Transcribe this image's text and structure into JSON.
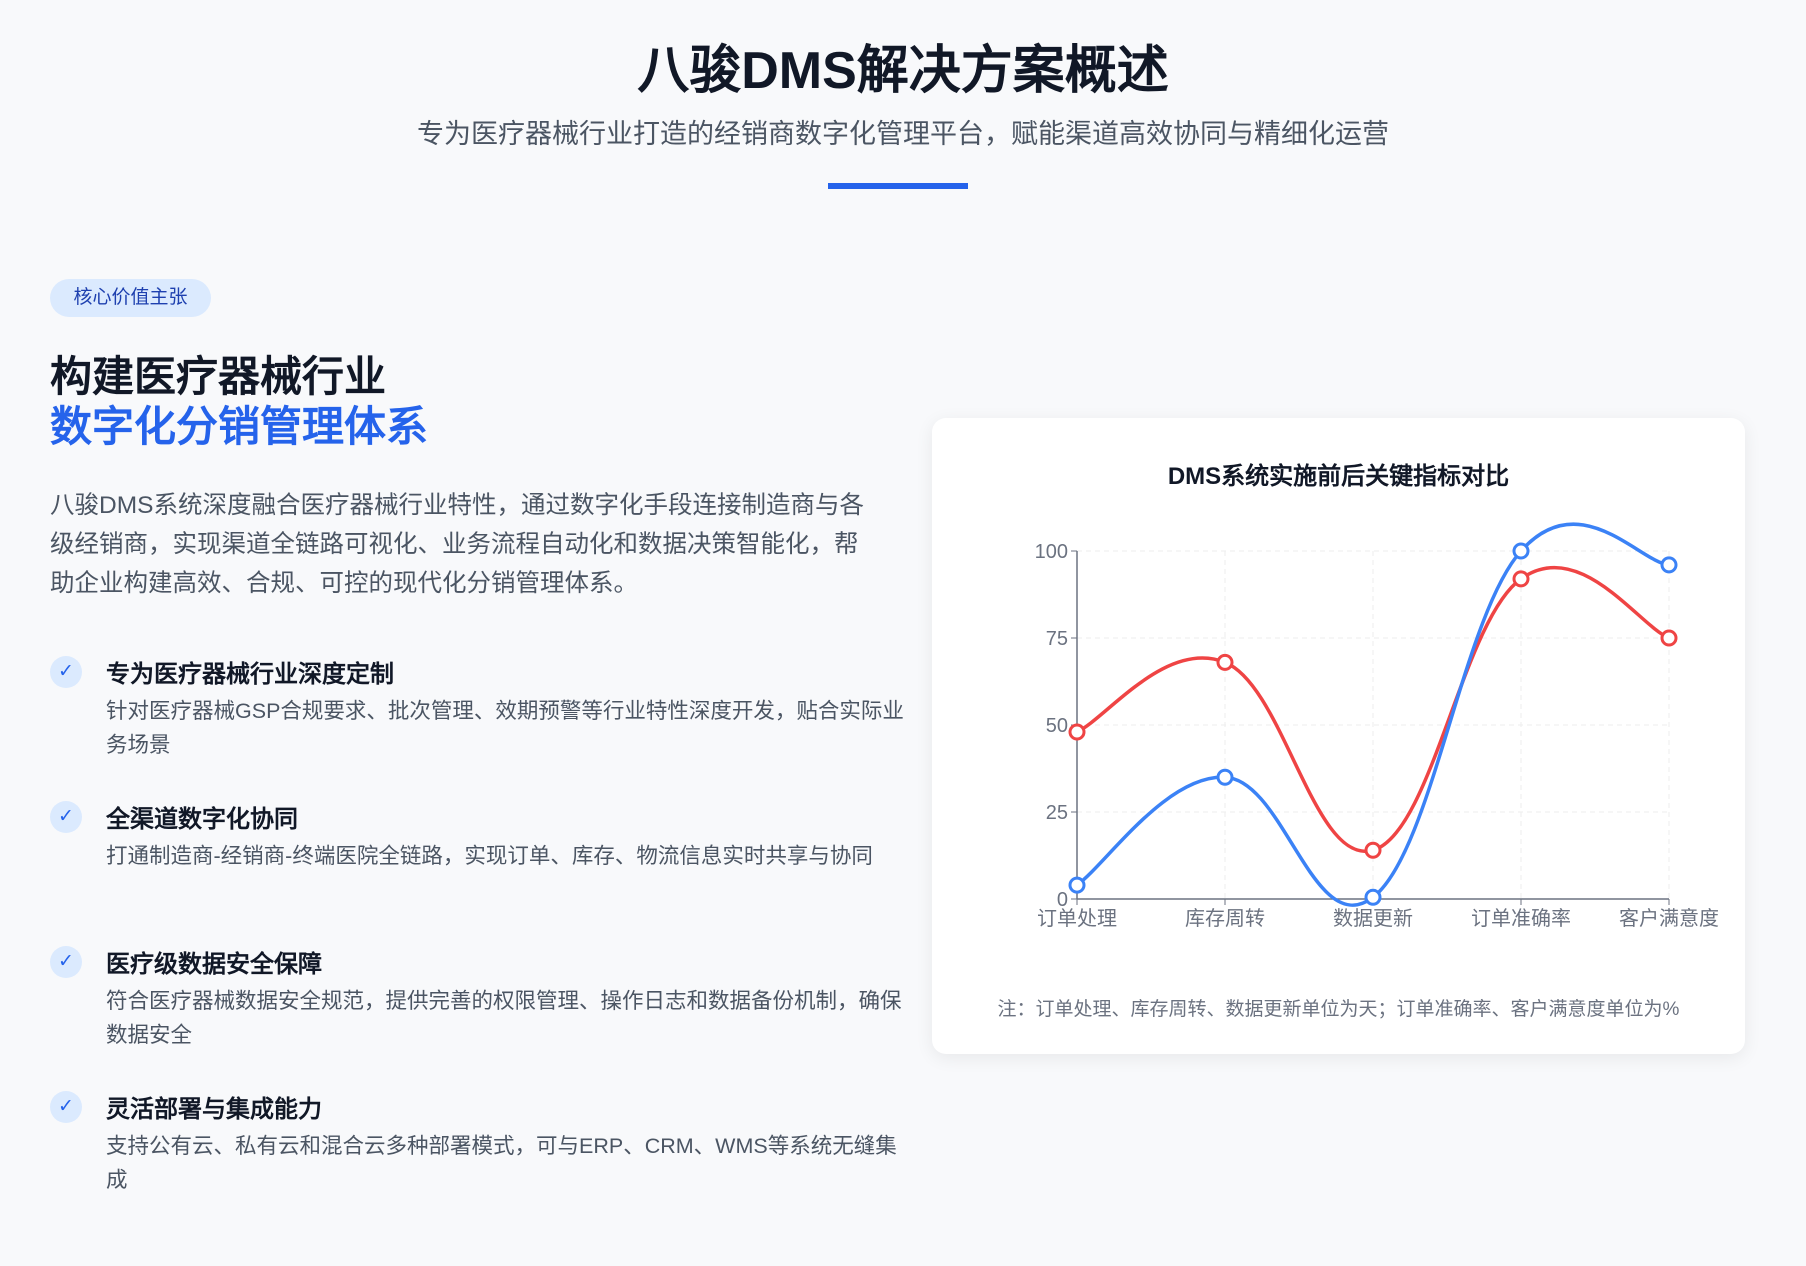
{
  "header": {
    "title": "八骏DMS解决方案概述",
    "subtitle": "专为医疗器械行业打造的经销商数字化管理平台，赋能渠道高效协同与精细化运营"
  },
  "left": {
    "badge": "核心价值主张",
    "heading_line1": "构建医疗器械行业",
    "heading_line2": "数字化分销管理体系",
    "paragraph": "八骏DMS系统深度融合医疗器械行业特性，通过数字化手段连接制造商与各级经销商，实现渠道全链路可视化、业务流程自动化和数据决策智能化，帮助企业构建高效、合规、可控的现代化分销管理体系。",
    "features": [
      {
        "icon": "check-icon",
        "title": "专为医疗器械行业深度定制",
        "desc": "针对医疗器械GSP合规要求、批次管理、效期预警等行业特性深度开发，贴合实际业务场景"
      },
      {
        "icon": "check-icon",
        "title": "全渠道数字化协同",
        "desc": "打通制造商-经销商-终端医院全链路，实现订单、库存、物流信息实时共享与协同"
      },
      {
        "icon": "check-icon",
        "title": "医疗级数据安全保障",
        "desc": "符合医疗器械数据安全规范，提供完善的权限管理、操作日志和数据备份机制，确保数据安全"
      },
      {
        "icon": "check-icon",
        "title": "灵活部署与集成能力",
        "desc": "支持公有云、私有云和混合云多种部署模式，可与ERP、CRM、WMS等系统无缝集成"
      }
    ]
  },
  "chart_data": {
    "type": "line",
    "title": "DMS系统实施前后关键指标对比",
    "categories": [
      "订单处理",
      "库存周转",
      "数据更新",
      "订单准确率",
      "客户满意度"
    ],
    "ylim": [
      0,
      100
    ],
    "yticks": [
      0,
      25,
      50,
      75,
      100
    ],
    "grid": true,
    "smooth": true,
    "series": [
      {
        "color": "#ef4444",
        "values": [
          48,
          68,
          14,
          92,
          75
        ]
      },
      {
        "color": "#3b82f6",
        "values": [
          4,
          35,
          0.5,
          100,
          96
        ]
      }
    ],
    "note": "注：订单处理、库存周转、数据更新单位为天；订单准确率、客户满意度单位为%"
  }
}
